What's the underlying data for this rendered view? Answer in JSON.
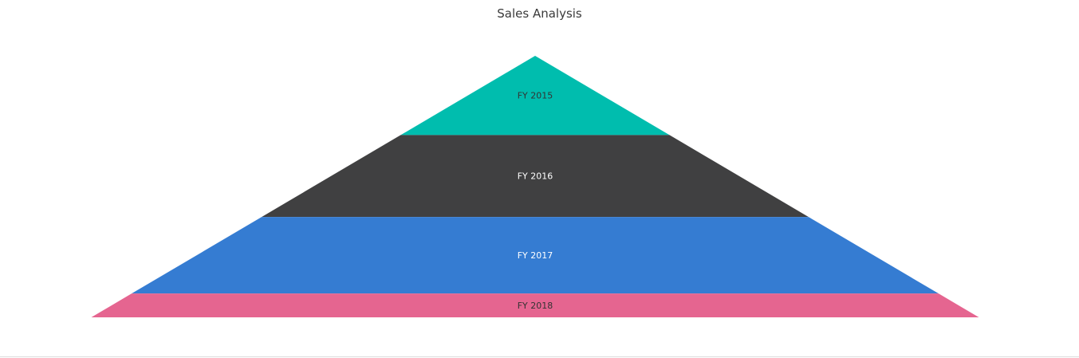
{
  "chart_data": {
    "type": "pyramid",
    "title": "Sales Analysis",
    "categories": [
      "FY 2015",
      "FY 2016",
      "FY 2017",
      "FY 2018"
    ],
    "values": [
      30,
      31,
      29,
      9
    ],
    "colors": [
      "#00bdae",
      "#404041",
      "#357cd2",
      "#e56590"
    ],
    "label_colors": [
      "#333333",
      "#ffffff",
      "#ffffff",
      "#333333"
    ],
    "legend": "none"
  }
}
